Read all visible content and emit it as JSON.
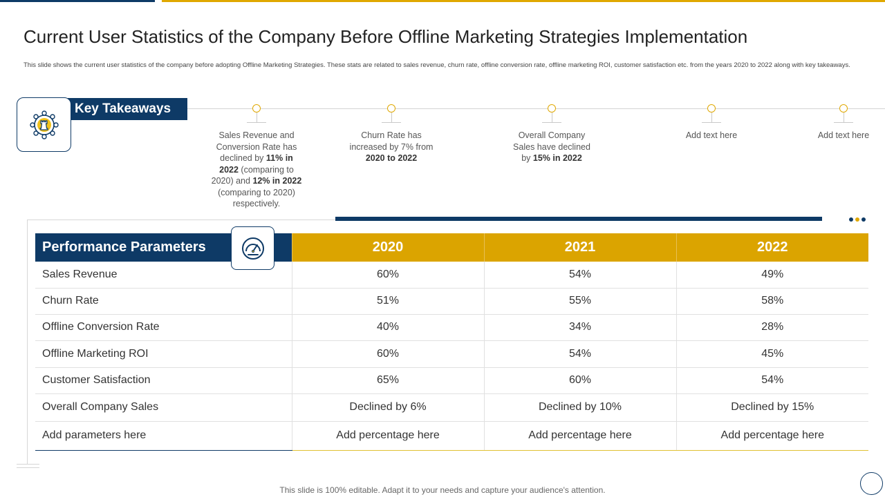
{
  "title": "Current User Statistics of the Company Before Offline Marketing Strategies Implementation",
  "subtitle": "This slide shows the current user statistics of the company before adopting Offline Marketing Strategies. These stats are related to sales revenue, churn rate, offline conversion rate, offline marketing ROI,  customer satisfaction etc. from the years 2020 to 2022 along with key takeaways.",
  "key_takeaways": {
    "label": "Key Takeaways",
    "icon": "chess-rook-network-icon",
    "items": [
      {
        "parts": [
          "Sales Revenue  and Conversion  Rate has declined by ",
          "11%  in 2022",
          " (comparing to 2020) and ",
          "12%  in 2022",
          " (comparing to 2020) respectively."
        ]
      },
      {
        "parts": [
          "Churn Rate has increased by 7% from ",
          "2020 to 2022"
        ]
      },
      {
        "parts": [
          "Overall  Company Sales have declined by ",
          "15%  in 2022"
        ]
      },
      {
        "parts": [
          "Add text here"
        ]
      },
      {
        "parts": [
          "Add text here"
        ]
      }
    ]
  },
  "table": {
    "header_param": "Performance Parameters",
    "header_icon": "speedometer-icon",
    "years": [
      "2020",
      "2021",
      "2022"
    ],
    "rows": [
      {
        "param": "Sales Revenue",
        "values": [
          "60%",
          "54%",
          "49%"
        ]
      },
      {
        "param": "Churn Rate",
        "values": [
          "51%",
          "55%",
          "58%"
        ]
      },
      {
        "param": "Offline Conversion Rate",
        "values": [
          "40%",
          "34%",
          "28%"
        ]
      },
      {
        "param": "Offline Marketing ROI",
        "values": [
          "60%",
          "54%",
          "45%"
        ]
      },
      {
        "param": "Customer Satisfaction",
        "values": [
          "65%",
          "60%",
          "54%"
        ]
      },
      {
        "param": "Overall Company Sales",
        "values": [
          "Declined by 6%",
          "Declined by 10%",
          "Declined by 15%"
        ]
      },
      {
        "param": "Add parameters here",
        "values": [
          "Add percentage here",
          "Add percentage here",
          "Add percentage here"
        ]
      }
    ]
  },
  "footer": "This slide is 100% editable. Adapt it to your needs and capture your audience's attention.",
  "colors": {
    "navy": "#0e3a66",
    "gold": "#dba400"
  }
}
